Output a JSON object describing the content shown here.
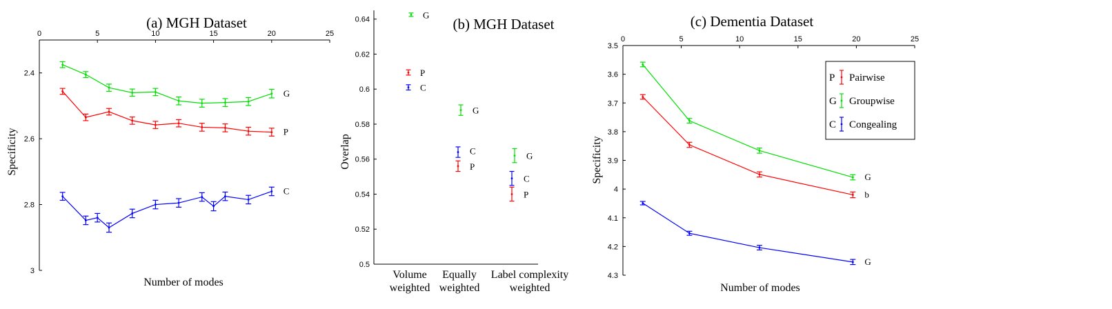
{
  "chart_data": [
    {
      "type": "line",
      "title": "(a) MGH Dataset",
      "xlabel": "Number of modes",
      "ylabel": "Specificity",
      "xlim": [
        0,
        25
      ],
      "ylim": [
        3,
        2.3
      ],
      "y_inverted": true,
      "x_axis_position": "top",
      "xticks": [
        "0",
        "5",
        "10",
        "15",
        "20",
        "25"
      ],
      "yticks": [
        "2.4",
        "2.6",
        "2.8",
        "3"
      ],
      "grid": false,
      "series": [
        {
          "name": "G",
          "color": "#00e000",
          "x": [
            2,
            4,
            6,
            8,
            10,
            12,
            14,
            16,
            18,
            20
          ],
          "y": [
            2.375,
            2.405,
            2.445,
            2.46,
            2.458,
            2.485,
            2.492,
            2.49,
            2.487,
            2.463
          ],
          "err": [
            0.009,
            0.009,
            0.011,
            0.011,
            0.011,
            0.012,
            0.012,
            0.012,
            0.012,
            0.013
          ]
        },
        {
          "name": "P",
          "color": "#ff0000",
          "x": [
            2,
            4,
            6,
            8,
            10,
            12,
            14,
            16,
            18,
            20
          ],
          "y": [
            2.456,
            2.535,
            2.518,
            2.545,
            2.558,
            2.553,
            2.565,
            2.567,
            2.577,
            2.58
          ],
          "err": [
            0.009,
            0.01,
            0.01,
            0.011,
            0.011,
            0.011,
            0.012,
            0.012,
            0.012,
            0.012
          ]
        },
        {
          "name": "C",
          "color": "#0000ff",
          "x": [
            2,
            4,
            5,
            6,
            8,
            10,
            12,
            14,
            15,
            16,
            18,
            20
          ],
          "y": [
            2.775,
            2.848,
            2.84,
            2.87,
            2.827,
            2.8,
            2.795,
            2.777,
            2.805,
            2.775,
            2.785,
            2.76
          ],
          "err": [
            0.012,
            0.013,
            0.013,
            0.014,
            0.013,
            0.013,
            0.013,
            0.013,
            0.014,
            0.013,
            0.013,
            0.013
          ]
        }
      ]
    },
    {
      "type": "scatter",
      "title": "(b) MGH Dataset",
      "xlabel": "",
      "ylabel": "Overlap",
      "ylim": [
        0.5,
        0.645
      ],
      "categories": [
        "Volume weighted",
        "Equally weighted",
        "Label complexity weighted"
      ],
      "category_lines": [
        [
          "Volume",
          "weighted"
        ],
        [
          "Equally",
          "weighted"
        ],
        [
          "Label complexity",
          "weighted"
        ]
      ],
      "yticks": [
        "0.5",
        "0.52",
        "0.54",
        "0.56",
        "0.58",
        "0.6",
        "0.62",
        "0.64"
      ],
      "grid": false,
      "series": [
        {
          "name": "G",
          "color": "#00e000",
          "values": [
            0.6425,
            0.588,
            0.562
          ],
          "err": [
            0.001,
            0.003,
            0.004
          ]
        },
        {
          "name": "P",
          "color": "#ff0000",
          "values": [
            0.6095,
            0.556,
            0.54
          ],
          "err": [
            0.0015,
            0.003,
            0.004
          ]
        },
        {
          "name": "C",
          "color": "#0000ff",
          "values": [
            0.601,
            0.564,
            0.549
          ],
          "err": [
            0.0015,
            0.003,
            0.004
          ]
        }
      ]
    },
    {
      "type": "line",
      "title": "(c) Dementia Dataset",
      "xlabel": "Number of modes",
      "ylabel": "Specificity",
      "xlim": [
        0,
        25
      ],
      "ylim": [
        4.3,
        3.5
      ],
      "y_inverted": true,
      "x_axis_position": "top",
      "xticks": [
        "0",
        "5",
        "10",
        "15",
        "20",
        "25"
      ],
      "yticks": [
        "3.5",
        "3.6",
        "3.7",
        "3.8",
        "3.9",
        "4",
        "4.1",
        "4.2",
        "4.3"
      ],
      "grid": false,
      "legend": {
        "position": "top-right",
        "entries": [
          {
            "key": "P",
            "label": "Pairwise",
            "color": "#ff0000"
          },
          {
            "key": "G",
            "label": "Groupwise",
            "color": "#00e000"
          },
          {
            "key": "C",
            "label": "Congealing",
            "color": "#0000ff"
          }
        ]
      },
      "series": [
        {
          "name": "G",
          "end_label": "G",
          "color": "#00e000",
          "x": [
            1.7,
            5.7,
            11.7,
            19.7
          ],
          "y": [
            3.566,
            3.762,
            3.866,
            3.959
          ],
          "err": [
            0.008,
            0.008,
            0.009,
            0.009
          ]
        },
        {
          "name": "P",
          "end_label": "b",
          "color": "#ff0000",
          "x": [
            1.7,
            5.7,
            11.7,
            19.7
          ],
          "y": [
            3.679,
            3.846,
            3.949,
            4.02
          ],
          "err": [
            0.008,
            0.009,
            0.009,
            0.01
          ]
        },
        {
          "name": "C",
          "end_label": "G",
          "color": "#0000ff",
          "x": [
            1.7,
            5.7,
            11.7,
            19.7
          ],
          "y": [
            4.049,
            4.154,
            4.204,
            4.254
          ],
          "err": [
            0.006,
            0.007,
            0.008,
            0.009
          ]
        }
      ]
    }
  ]
}
